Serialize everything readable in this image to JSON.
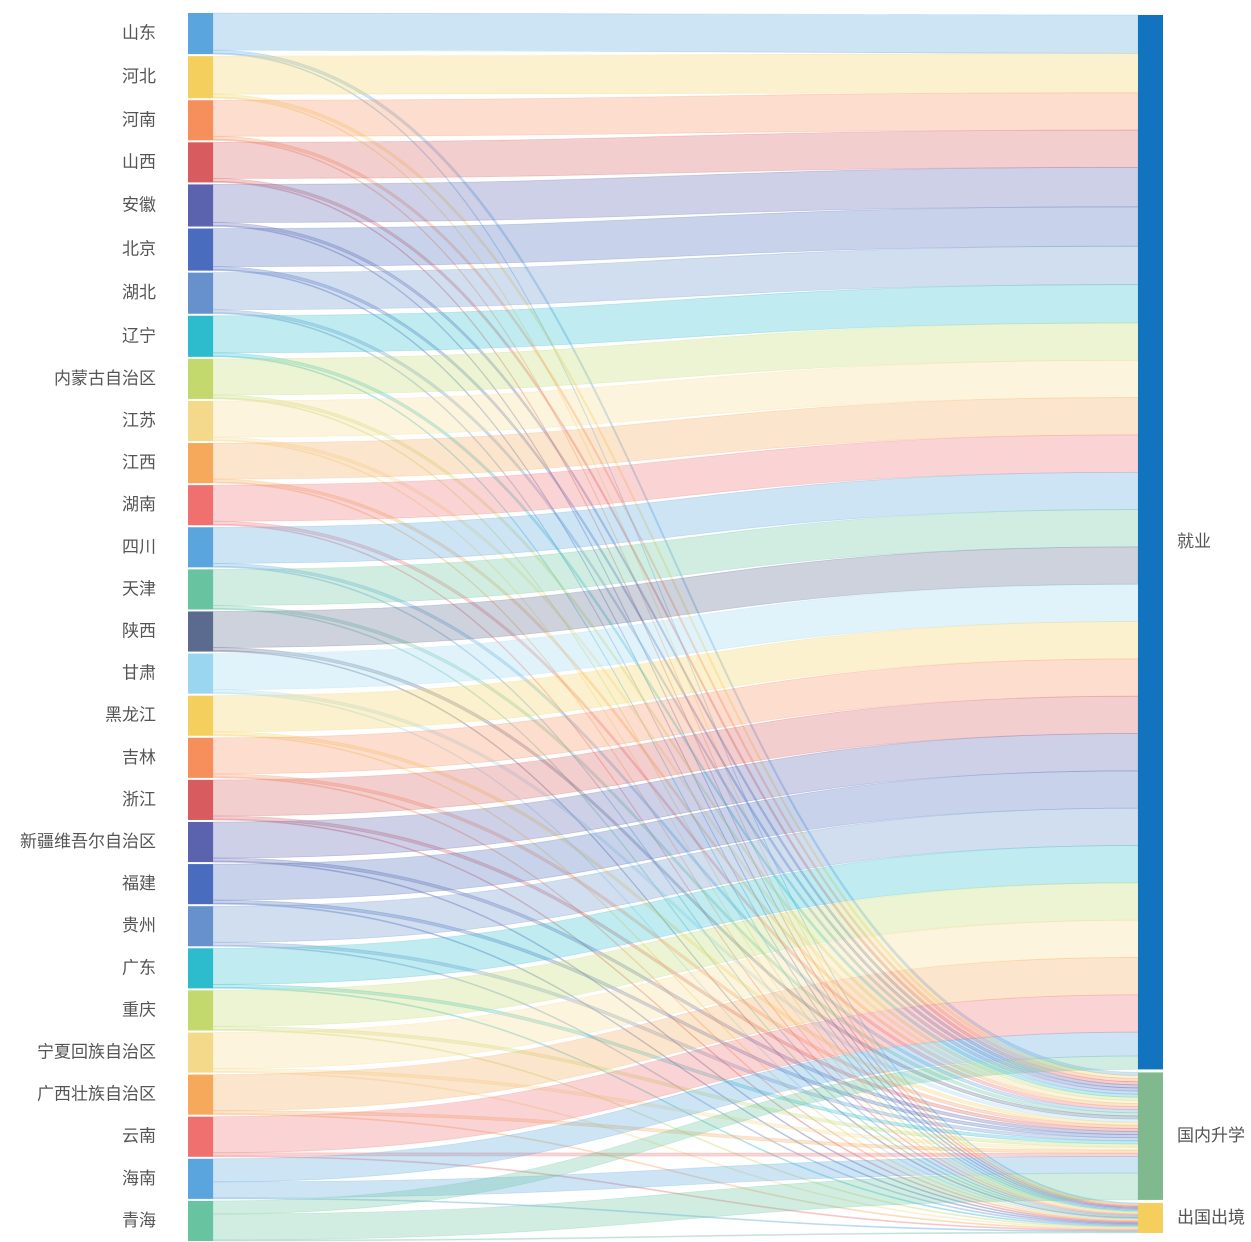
{
  "chart_data": {
    "type": "sankey",
    "title": "",
    "sources": [
      {
        "name": "山东",
        "color": "#5aa5de"
      },
      {
        "name": "河北",
        "color": "#f5cf5e"
      },
      {
        "name": "河南",
        "color": "#f78f5c"
      },
      {
        "name": "山西",
        "color": "#d85c5f"
      },
      {
        "name": "安徽",
        "color": "#5c63ae"
      },
      {
        "name": "北京",
        "color": "#4a6cbe"
      },
      {
        "name": "湖北",
        "color": "#6791cd"
      },
      {
        "name": "辽宁",
        "color": "#2dbccd"
      },
      {
        "name": "内蒙古自治区",
        "color": "#c4d96d"
      },
      {
        "name": "江苏",
        "color": "#f5d98a"
      },
      {
        "name": "江西",
        "color": "#f6a95b"
      },
      {
        "name": "湖南",
        "color": "#f06f6f"
      },
      {
        "name": "四川",
        "color": "#5aa5de"
      },
      {
        "name": "天津",
        "color": "#67c3a0"
      },
      {
        "name": "陕西",
        "color": "#5a6b8f"
      },
      {
        "name": "甘肃",
        "color": "#9ad6f0"
      },
      {
        "name": "黑龙江",
        "color": "#f5cf5e"
      },
      {
        "name": "吉林",
        "color": "#f78f5c"
      },
      {
        "name": "浙江",
        "color": "#d85c5f"
      },
      {
        "name": "新疆维吾尔自治区",
        "color": "#5c63ae"
      },
      {
        "name": "福建",
        "color": "#4a6cbe"
      },
      {
        "name": "贵州",
        "color": "#6791cd"
      },
      {
        "name": "广东",
        "color": "#2dbccd"
      },
      {
        "name": "重庆",
        "color": "#c4d96d"
      },
      {
        "name": "宁夏回族自治区",
        "color": "#f5d98a"
      },
      {
        "name": "广西壮族自治区",
        "color": "#f6a95b"
      },
      {
        "name": "云南",
        "color": "#f06f6f"
      },
      {
        "name": "海南",
        "color": "#5aa5de"
      },
      {
        "name": "青海",
        "color": "#67c3a0"
      }
    ],
    "targets": [
      {
        "name": "就业",
        "color": "#1273be"
      },
      {
        "name": "国内升学",
        "color": "#7fb98d"
      },
      {
        "name": "出国出境",
        "color": "#f5cf5e"
      }
    ],
    "flows": [
      [
        37,
        3,
        1
      ],
      [
        38,
        3,
        1
      ],
      [
        36,
        3,
        1
      ],
      [
        36,
        3,
        1
      ],
      [
        38,
        3,
        1
      ],
      [
        38,
        3,
        1
      ],
      [
        37,
        3,
        1
      ],
      [
        37,
        3,
        1
      ],
      [
        36,
        3,
        1
      ],
      [
        36,
        3,
        1
      ],
      [
        36,
        3,
        1
      ],
      [
        36,
        3,
        1
      ],
      [
        36,
        3,
        1
      ],
      [
        36,
        3,
        1
      ],
      [
        36,
        3,
        1
      ],
      [
        36,
        3,
        1
      ],
      [
        36,
        3,
        1
      ],
      [
        36,
        3,
        1
      ],
      [
        36,
        3,
        1
      ],
      [
        36,
        3,
        1
      ],
      [
        36,
        3,
        1
      ],
      [
        36,
        3,
        1
      ],
      [
        36,
        3,
        1
      ],
      [
        36,
        3,
        1
      ],
      [
        36,
        3,
        1
      ],
      [
        36,
        3,
        1
      ],
      [
        36,
        3,
        1
      ],
      [
        23,
        16,
        1
      ],
      [
        13,
        26,
        1
      ]
    ]
  }
}
